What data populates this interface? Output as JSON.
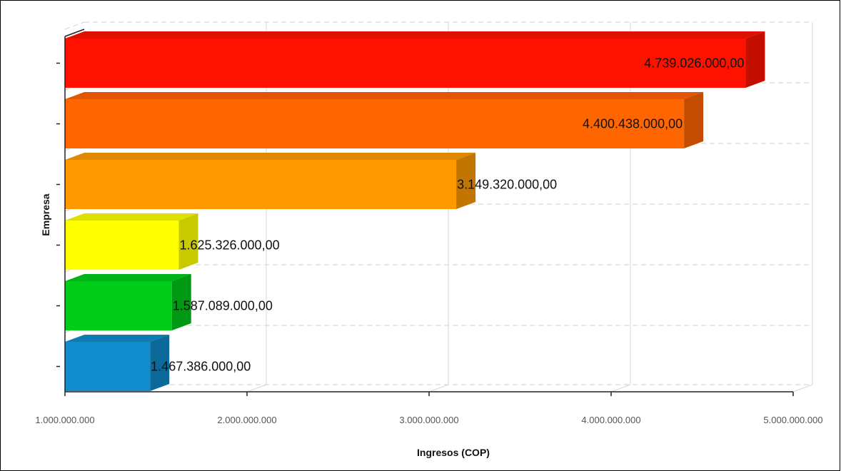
{
  "chart_data": {
    "type": "bar",
    "orientation": "horizontal",
    "style": "3d",
    "xlabel": "Ingresos (COP)",
    "ylabel": "Empresa",
    "xlim": [
      1000000000,
      5000000000
    ],
    "x_ticks": [
      1000000000,
      2000000000,
      3000000000,
      4000000000,
      5000000000
    ],
    "x_tick_labels": [
      "1.000.000.000",
      "2.000.000.000",
      "3.000.000.000",
      "4.000.000.000",
      "5.000.000.000"
    ],
    "grid": true,
    "legend": "none",
    "values": [
      4739026000,
      4400438000,
      3149320000,
      1625326000,
      1587089000,
      1467386000
    ],
    "value_labels": [
      "4.739.026.000,00",
      "4.400.438.000,00",
      "3.149.320.000,00",
      "1.625.326.000,00",
      "1.587.089.000,00",
      "1.467.386.000,00"
    ],
    "bar_colors": [
      "#ff1100",
      "#ff6600",
      "#ff9900",
      "#ffff00",
      "#00cc1a",
      "#118ccc"
    ],
    "bar_top_colors": [
      "#e01000",
      "#e35500",
      "#e08800",
      "#e0e000",
      "#00b317",
      "#0e7bb3"
    ],
    "bar_side_colors": [
      "#c40e00",
      "#c44c00",
      "#c27500",
      "#c9c900",
      "#009913",
      "#0b6a99"
    ]
  }
}
